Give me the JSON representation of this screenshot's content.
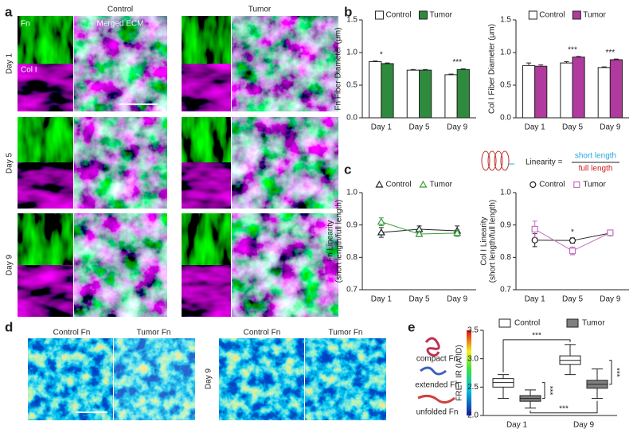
{
  "figure": {
    "a": "a",
    "b": "b",
    "c": "c",
    "d": "d",
    "e": "e",
    "a_control": "Control",
    "a_tumor": "Tumor",
    "a_fn": "Fn",
    "a_merged": "Merged ECM",
    "a_col": "Col I",
    "a_day1": "Day 1",
    "a_day5": "Day 5",
    "a_day9": "Day 9",
    "d_control1": "Control Fn",
    "d_tumor1": "Tumor Fn",
    "d_control9": "Control Fn",
    "d_tumor9": "Tumor Fn",
    "d_day1": "Day 1",
    "d_day9": "Day 9",
    "linearity": "Linearity =",
    "short": "short length",
    "full": "full length",
    "compact": "compact Fn",
    "extended": "extended Fn",
    "unfolded": "unfolded Fn"
  },
  "chart_data": [
    {
      "type": "bar",
      "ylabel": [
        "Fn Fiber Diameter (μm)"
      ],
      "categories": [
        "Day 1",
        "Day 5",
        "Day 9"
      ],
      "series": [
        {
          "name": "Control",
          "color": "#ffffff",
          "values": [
            0.86,
            0.73,
            0.66
          ],
          "errors": [
            0.01,
            0.01,
            0.01
          ]
        },
        {
          "name": "Tumor",
          "color": "#2e8b3e",
          "values": [
            0.83,
            0.73,
            0.74
          ],
          "errors": [
            0.01,
            0.01,
            0.01
          ]
        }
      ],
      "significance": [
        "*",
        null,
        "***"
      ],
      "ylim": [
        0,
        1.5
      ],
      "yticks": [
        {
          "value": 0,
          "label": "0.0"
        },
        0.5,
        {
          "value": 1,
          "label": "1.0"
        },
        1.5
      ]
    },
    {
      "type": "bar",
      "ylabel": [
        "Col I Fiber Diameter (μm)"
      ],
      "categories": [
        "Day 1",
        "Day 5",
        "Day 9"
      ],
      "series": [
        {
          "name": "Control",
          "color": "#ffffff",
          "values": [
            0.8,
            0.84,
            0.77
          ],
          "errors": [
            0.04,
            0.02,
            0.01
          ]
        },
        {
          "name": "Tumor",
          "color": "#b03a9e",
          "values": [
            0.79,
            0.93,
            0.89
          ],
          "errors": [
            0.02,
            0.01,
            0.01
          ]
        }
      ],
      "significance": [
        null,
        "***",
        "***"
      ],
      "ylim": [
        0,
        1.5
      ],
      "yticks": [
        {
          "value": 0,
          "label": "0.0"
        },
        0.5,
        {
          "value": 1,
          "label": "1.0"
        },
        1.5
      ]
    },
    {
      "type": "line",
      "ylabel": [
        "Fn Linearity",
        "(short length/full length)"
      ],
      "categories": [
        "Day 1",
        "Day 5",
        "Day 9"
      ],
      "series": [
        {
          "name": "Control",
          "color": "#222222",
          "marker": "triangle",
          "values": [
            0.877,
            0.887,
            0.882
          ],
          "errors": [
            0.015,
            0.01,
            0.015
          ]
        },
        {
          "name": "Tumor",
          "color": "#3a9a3a",
          "marker": "triangle",
          "values": [
            0.91,
            0.872,
            0.875
          ],
          "errors": [
            0.012,
            0.008,
            0.01
          ]
        }
      ],
      "significance": [
        null,
        null,
        null
      ],
      "ylim": [
        0.7,
        1
      ],
      "yticks": [
        0.7,
        0.8,
        0.9,
        {
          "value": 1,
          "label": "1.0"
        }
      ]
    },
    {
      "type": "line",
      "ylabel": [
        "Col I Linearity",
        "(short length/full length)"
      ],
      "categories": [
        "Day 1",
        "Day 5",
        "Day 9"
      ],
      "series": [
        {
          "name": "Control",
          "color": "#222222",
          "marker": "circle",
          "values": [
            0.853,
            0.852,
            0.875
          ],
          "errors": [
            0.02,
            0.008,
            0.008
          ]
        },
        {
          "name": "Tumor",
          "color": "#c46fc0",
          "marker": "square",
          "values": [
            0.887,
            0.82,
            0.876
          ],
          "errors": [
            0.025,
            0.012,
            0.008
          ]
        }
      ],
      "significance": [
        null,
        "*",
        null
      ],
      "ylim": [
        0.7,
        1
      ],
      "yticks": [
        0.7,
        0.8,
        0.9,
        {
          "value": 1,
          "label": "1.0"
        }
      ]
    },
    {
      "type": "box",
      "ylabel": [
        "FRET IR (IA/ID)"
      ],
      "categories": [
        "Day 1",
        "Day 9"
      ],
      "series": [
        {
          "name": "Control",
          "color": "#ffffff",
          "values": [
            {
              "min": 2.3,
              "q1": 2.5,
              "median": 2.58,
              "q3": 2.65,
              "max": 2.72
            },
            {
              "min": 2.72,
              "q1": 2.9,
              "median": 2.97,
              "q3": 3.05,
              "max": 3.25
            }
          ]
        },
        {
          "name": "Tumor",
          "color": "#808080",
          "values": [
            {
              "min": 2.13,
              "q1": 2.25,
              "median": 2.3,
              "q3": 2.35,
              "max": 2.45
            },
            {
              "min": 2.3,
              "q1": 2.48,
              "median": 2.55,
              "q3": 2.62,
              "max": 2.82
            }
          ]
        }
      ],
      "significance": [
        "***",
        "***",
        "***",
        "***"
      ],
      "ylim": [
        2,
        3.5
      ],
      "yticks": [
        {
          "value": 2,
          "label": "2.0"
        },
        2.5,
        {
          "value": 3,
          "label": "3.0"
        },
        3.5
      ]
    }
  ]
}
